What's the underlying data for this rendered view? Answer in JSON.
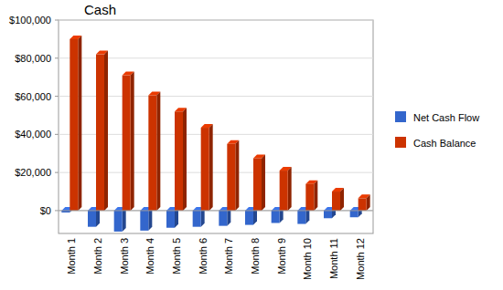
{
  "chart_data": {
    "type": "bar",
    "title": "Cash",
    "categories": [
      "Month 1",
      "Month 2",
      "Month 3",
      "Month 4",
      "Month 5",
      "Month 6",
      "Month 7",
      "Month 8",
      "Month 9",
      "Month 10",
      "Month 11",
      "Month 12"
    ],
    "series": [
      {
        "name": "Net Cash Flow",
        "color": "#3366cc",
        "values": [
          -1000,
          -8500,
          -11000,
          -10500,
          -9000,
          -8500,
          -8000,
          -7500,
          -6500,
          -7000,
          -4000,
          -3500
        ]
      },
      {
        "name": "Cash Balance",
        "color": "#cc3300",
        "values": [
          90000,
          82000,
          71000,
          60500,
          52000,
          43500,
          35000,
          27500,
          21000,
          14000,
          10000,
          6500
        ]
      }
    ],
    "ylim": [
      -12000,
      100000
    ],
    "yticks": [
      {
        "value": 0,
        "label": "$0"
      },
      {
        "value": 20000,
        "label": "$20,000"
      },
      {
        "value": 40000,
        "label": "$40,000"
      },
      {
        "value": 60000,
        "label": "$60,000"
      },
      {
        "value": 80000,
        "label": "$80,000"
      },
      {
        "value": 100000,
        "label": "$100,000"
      }
    ],
    "grid": true,
    "legend": "right"
  }
}
